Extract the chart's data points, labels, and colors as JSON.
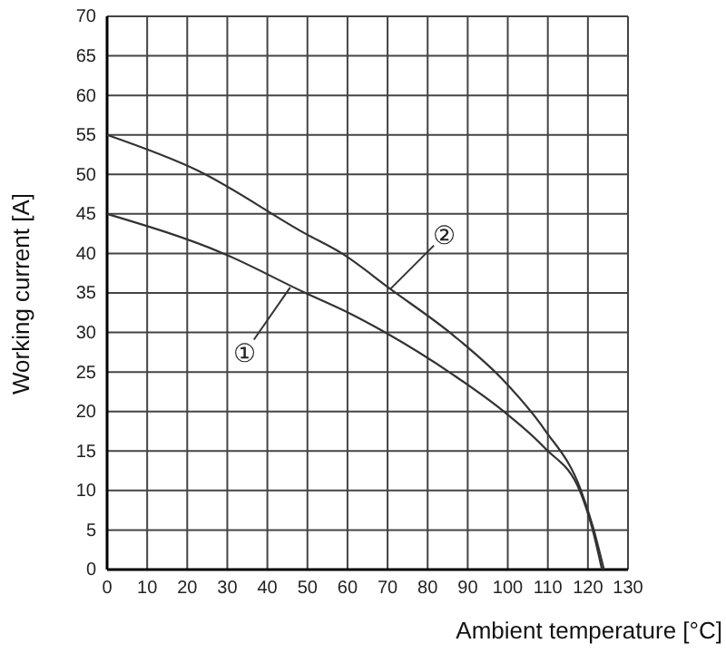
{
  "chart_data": {
    "type": "line",
    "xlabel": "Ambient temperature [°C]",
    "ylabel": "Working current [A]",
    "xlim": [
      0,
      130
    ],
    "xticks": [
      0,
      10,
      20,
      30,
      40,
      50,
      60,
      70,
      80,
      90,
      100,
      110,
      120,
      130
    ],
    "ylim": [
      0,
      70
    ],
    "yticks": [
      0,
      5,
      10,
      15,
      20,
      25,
      30,
      35,
      40,
      45,
      50,
      55,
      60,
      65,
      70
    ],
    "grid": true,
    "marker": "none",
    "line_style": "solid",
    "series": [
      {
        "color": "#333333",
        "x": [
          0,
          29,
          49.5,
          59.4,
          69.4,
          86.5,
          99,
          109.2,
          118.2,
          121.2,
          123.5
        ],
        "values": [
          45,
          40,
          35,
          32.7,
          30,
          24.6,
          20,
          15.4,
          9.7,
          5,
          0
        ]
      },
      {
        "color": "#333333",
        "x": [
          0,
          22.6,
          49.5,
          58.6,
          70.7,
          86.5,
          99,
          109.2,
          118.2,
          121.2,
          124
        ],
        "values": [
          55,
          50.5,
          42.5,
          40,
          35.5,
          29.6,
          23.9,
          17.7,
          10.1,
          5.5,
          0
        ]
      }
    ],
    "annotations": [
      {
        "text": "①",
        "x": 45.7,
        "y": 35.7
      },
      {
        "text": "②",
        "x": 70.7,
        "y": 35.5
      }
    ]
  }
}
